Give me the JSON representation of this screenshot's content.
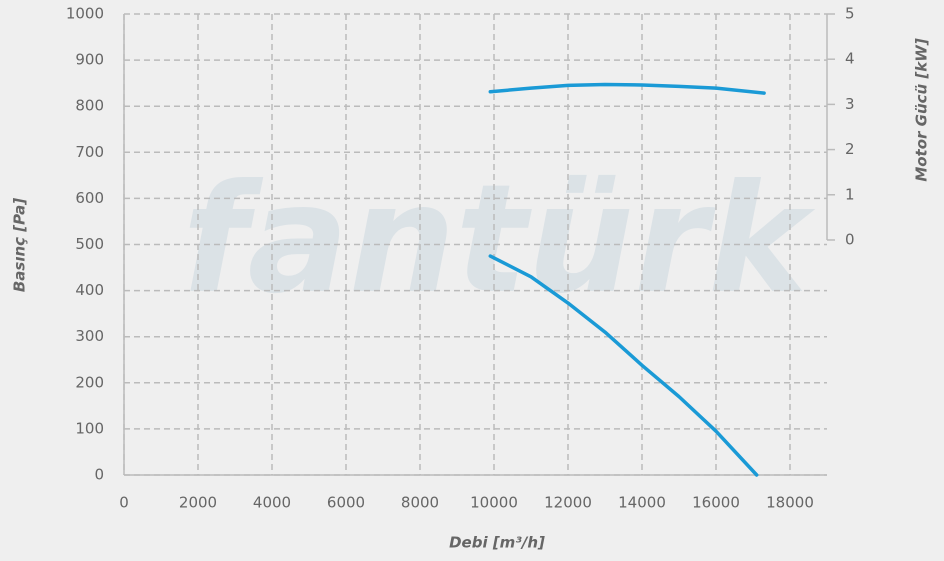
{
  "chart_data": {
    "type": "line",
    "xlabel": "Debi [m³/h]",
    "ylabel": "Basınç [Pa]",
    "y2label": "Motor Gücü [kW]",
    "watermark": "fantürk",
    "xlim": [
      0,
      19000
    ],
    "xticks": [
      0,
      2000,
      4000,
      6000,
      8000,
      10000,
      12000,
      14000,
      16000,
      18000
    ],
    "ylim": [
      0,
      1000
    ],
    "yticks": [
      0,
      100,
      200,
      300,
      400,
      500,
      600,
      700,
      800,
      900,
      1000
    ],
    "y2lim": [
      -5.2,
      5
    ],
    "y2ticks": [
      0,
      1,
      2,
      3,
      4,
      5
    ],
    "grid": true,
    "series": [
      {
        "color": "#1a9ad6",
        "x": [
          9900,
          11000,
          12000,
          13000,
          14000,
          15000,
          16000,
          17100
        ],
        "values": [
          475,
          430,
          373,
          310,
          238,
          170,
          95,
          0
        ]
      },
      {
        "color": "#1a9ad6",
        "axis": "y2",
        "x": [
          9900,
          11000,
          12000,
          13000,
          14000,
          15000,
          16000,
          17300
        ],
        "values": [
          3.28,
          3.36,
          3.42,
          3.44,
          3.43,
          3.4,
          3.36,
          3.25
        ]
      }
    ]
  }
}
